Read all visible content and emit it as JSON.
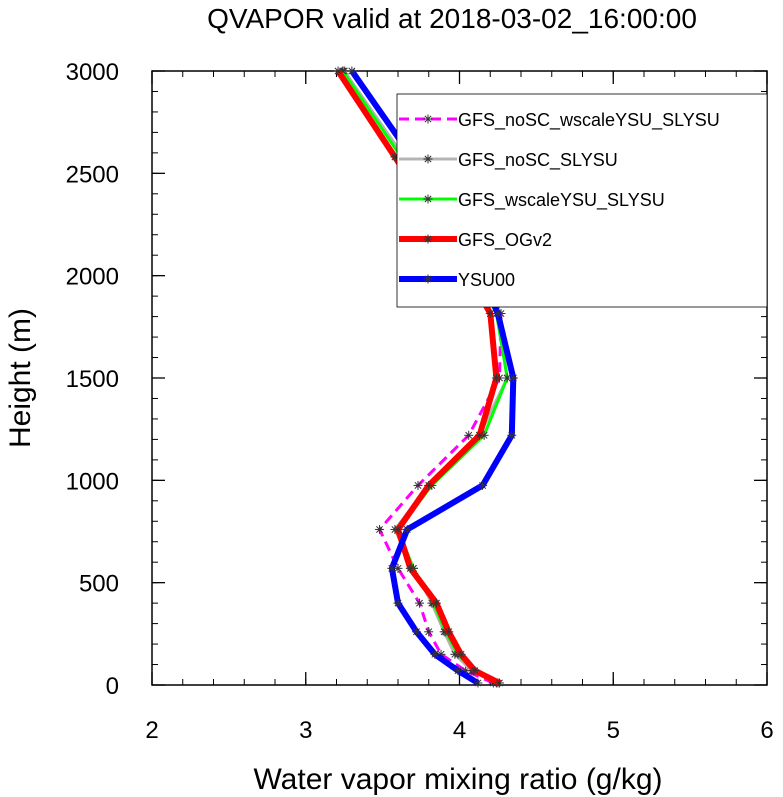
{
  "chart_data": {
    "type": "line",
    "title": "QVAPOR valid at 2018-03-02_16:00:00",
    "xlabel": "Water vapor mixing ratio (g/kg)",
    "ylabel": "Height (m)",
    "xlim": [
      2,
      6
    ],
    "ylim": [
      0,
      3000
    ],
    "xticks": [
      "2",
      "3",
      "4",
      "5",
      "6"
    ],
    "yticks": [
      "0",
      "500",
      "1000",
      "1500",
      "2000",
      "2500",
      "3000"
    ],
    "legend_position": "top-right",
    "heights": [
      10,
      70,
      150,
      260,
      400,
      570,
      760,
      975,
      1220,
      1500,
      1815,
      2180,
      2580,
      3000
    ],
    "series": [
      {
        "name": "GFS_noSC_wscaleYSU_SLYSU",
        "color": "#ff00ff",
        "dash": "10,6",
        "width": 3,
        "values": [
          4.22,
          4.04,
          3.88,
          3.8,
          3.74,
          3.6,
          3.48,
          3.73,
          4.06,
          4.26,
          4.27,
          4.02,
          3.63,
          3.25
        ]
      },
      {
        "name": "GFS_noSC_SLYSU",
        "color": "#b4b4b4",
        "dash": "",
        "width": 3,
        "values": [
          4.24,
          4.08,
          3.97,
          3.9,
          3.82,
          3.7,
          3.58,
          3.8,
          4.13,
          4.31,
          4.25,
          4.0,
          3.64,
          3.25
        ]
      },
      {
        "name": "GFS_wscaleYSU_SLYSU",
        "color": "#00ff00",
        "dash": "",
        "width": 3,
        "values": [
          4.25,
          4.09,
          3.99,
          3.91,
          3.83,
          3.7,
          3.6,
          3.82,
          4.16,
          4.31,
          4.24,
          3.99,
          3.62,
          3.24
        ]
      },
      {
        "name": "GFS_OGv2",
        "color": "#ff0000",
        "dash": "",
        "width": 6,
        "values": [
          4.26,
          4.1,
          4.01,
          3.93,
          3.85,
          3.68,
          3.6,
          3.8,
          4.13,
          4.24,
          4.2,
          3.93,
          3.58,
          3.21
        ]
      },
      {
        "name": "YSU00",
        "color": "#0000ff",
        "dash": "",
        "width": 6,
        "values": [
          4.12,
          3.99,
          3.84,
          3.72,
          3.6,
          3.56,
          3.66,
          4.15,
          4.34,
          4.35,
          4.25,
          4.04,
          3.69,
          3.3
        ]
      }
    ]
  }
}
